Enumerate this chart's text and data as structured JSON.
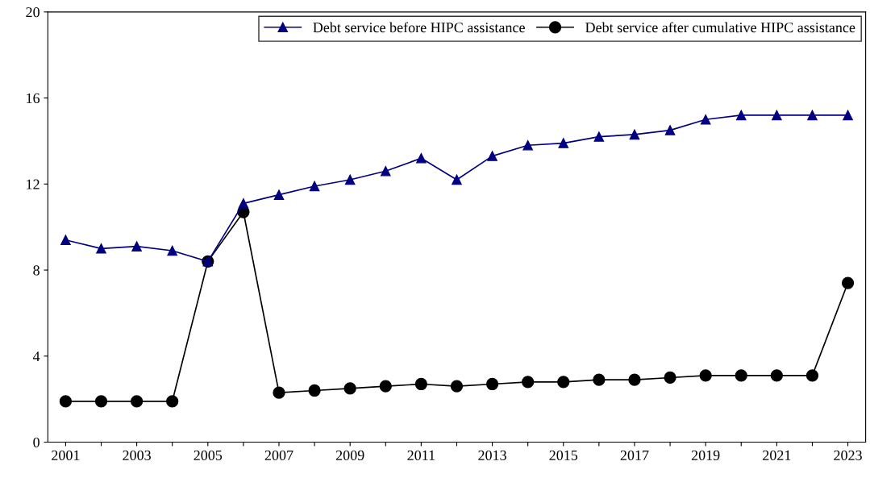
{
  "chart_data": {
    "type": "line",
    "categories": [
      "2001",
      null,
      "2003",
      null,
      "2005",
      null,
      "2007",
      null,
      "2009",
      null,
      "2011",
      null,
      "2013",
      null,
      "2015",
      null,
      "2017",
      null,
      "2019",
      null,
      "2021",
      null,
      "2023"
    ],
    "series": [
      {
        "name": "Debt service before HIPC assistance",
        "color": "#000080",
        "marker": "triangle",
        "values": [
          9.4,
          9.0,
          9.1,
          8.9,
          8.4,
          11.1,
          11.5,
          11.9,
          12.2,
          12.6,
          13.2,
          12.2,
          13.3,
          13.8,
          13.9,
          14.2,
          14.3,
          14.5,
          15.0,
          15.2,
          15.2,
          15.2,
          15.2
        ]
      },
      {
        "name": "Debt service after cumulative HIPC assistance",
        "color": "#000000",
        "marker": "circle",
        "values": [
          1.9,
          1.9,
          1.9,
          1.9,
          8.4,
          10.7,
          2.3,
          2.4,
          2.5,
          2.6,
          2.7,
          2.6,
          2.7,
          2.8,
          2.8,
          2.9,
          2.9,
          3.0,
          3.1,
          3.1,
          3.1,
          3.1,
          7.4
        ]
      }
    ],
    "ylim": [
      0,
      20
    ],
    "yticks": [
      0,
      4,
      8,
      12,
      16,
      20
    ],
    "grid": false,
    "legend": "top right",
    "line_style": "solid"
  }
}
